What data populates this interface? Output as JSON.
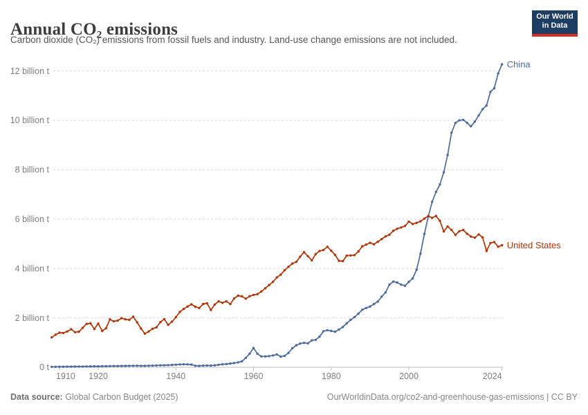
{
  "header": {
    "title": "Annual CO₂ emissions",
    "subtitle": "Carbon dioxide (CO₂) emissions from fossil fuels and industry. Land-use change emissions are not included."
  },
  "logo": {
    "line1": "Our World",
    "line2": "in Data"
  },
  "footer": {
    "source_label": "Data source:",
    "source_value": " Global Carbon Budget (2025)",
    "attribution": "OurWorldinData.org/co2-and-greenhouse-gas-emissions | CC BY"
  },
  "chart_data": {
    "type": "line",
    "title": "Annual CO₂ emissions",
    "xlabel": "",
    "ylabel": "",
    "unit": "billion tonnes of CO₂",
    "grid": "horizontal-dashed",
    "legend_position": "line-end-labels",
    "x_range": [
      1908,
      2024
    ],
    "y_range": [
      0,
      12.4
    ],
    "x_ticks": [
      {
        "year": 1910,
        "label": "1910"
      },
      {
        "year": 1920,
        "label": "1920"
      },
      {
        "year": 1940,
        "label": "1940"
      },
      {
        "year": 1960,
        "label": "1960"
      },
      {
        "year": 1980,
        "label": "1980"
      },
      {
        "year": 2000,
        "label": "2000"
      },
      {
        "year": 2024,
        "label": "2024"
      }
    ],
    "y_ticks": [
      {
        "value": 0,
        "label": "0 t"
      },
      {
        "value": 2,
        "label": "2 billion t"
      },
      {
        "value": 4,
        "label": "4 billion t"
      },
      {
        "value": 6,
        "label": "6 billion t"
      },
      {
        "value": 8,
        "label": "8 billion t"
      },
      {
        "value": 10,
        "label": "10 billion t"
      },
      {
        "value": 12,
        "label": "12 billion t"
      }
    ],
    "series": [
      {
        "name": "China",
        "color": "#4C6A9C",
        "start_year": 1908,
        "end_year": 2024,
        "values": [
          0.02,
          0.021,
          0.022,
          0.022,
          0.024,
          0.026,
          0.028,
          0.03,
          0.032,
          0.034,
          0.036,
          0.038,
          0.04,
          0.042,
          0.044,
          0.047,
          0.05,
          0.05,
          0.052,
          0.056,
          0.058,
          0.062,
          0.064,
          0.06,
          0.06,
          0.064,
          0.068,
          0.073,
          0.078,
          0.08,
          0.088,
          0.096,
          0.105,
          0.115,
          0.12,
          0.118,
          0.108,
          0.062,
          0.06,
          0.068,
          0.072,
          0.068,
          0.079,
          0.1,
          0.12,
          0.13,
          0.15,
          0.17,
          0.2,
          0.24,
          0.38,
          0.55,
          0.78,
          0.55,
          0.44,
          0.44,
          0.45,
          0.48,
          0.52,
          0.43,
          0.46,
          0.58,
          0.77,
          0.89,
          0.96,
          0.99,
          0.97,
          1.09,
          1.11,
          1.24,
          1.46,
          1.5,
          1.47,
          1.44,
          1.53,
          1.63,
          1.78,
          1.92,
          2.03,
          2.17,
          2.33,
          2.4,
          2.46,
          2.56,
          2.66,
          2.86,
          3.03,
          3.35,
          3.47,
          3.43,
          3.35,
          3.3,
          3.46,
          3.6,
          3.95,
          4.6,
          5.4,
          6.1,
          6.7,
          7.1,
          7.4,
          7.9,
          8.6,
          9.5,
          9.9,
          10.0,
          10.02,
          9.9,
          9.76,
          9.95,
          10.2,
          10.45,
          10.6,
          11.15,
          11.3,
          11.9,
          12.27
        ]
      },
      {
        "name": "United States",
        "color": "#B13507",
        "start_year": 1908,
        "end_year": 2024,
        "values": [
          1.21,
          1.32,
          1.4,
          1.39,
          1.45,
          1.54,
          1.42,
          1.44,
          1.6,
          1.76,
          1.78,
          1.55,
          1.77,
          1.47,
          1.58,
          1.94,
          1.86,
          1.89,
          1.99,
          1.94,
          1.92,
          2.05,
          1.82,
          1.57,
          1.36,
          1.45,
          1.56,
          1.62,
          1.83,
          1.95,
          1.72,
          1.85,
          2.03,
          2.24,
          2.36,
          2.46,
          2.55,
          2.45,
          2.4,
          2.56,
          2.59,
          2.32,
          2.54,
          2.67,
          2.61,
          2.67,
          2.56,
          2.79,
          2.9,
          2.87,
          2.78,
          2.88,
          2.93,
          2.96,
          3.07,
          3.2,
          3.33,
          3.46,
          3.64,
          3.75,
          3.93,
          4.07,
          4.2,
          4.27,
          4.48,
          4.66,
          4.5,
          4.33,
          4.58,
          4.71,
          4.75,
          4.88,
          4.72,
          4.55,
          4.31,
          4.3,
          4.52,
          4.53,
          4.54,
          4.69,
          4.9,
          4.97,
          5.04,
          4.98,
          5.08,
          5.19,
          5.3,
          5.37,
          5.53,
          5.61,
          5.66,
          5.72,
          5.9,
          5.8,
          5.85,
          5.91,
          6.02,
          6.13,
          6.05,
          6.13,
          5.93,
          5.5,
          5.7,
          5.56,
          5.36,
          5.51,
          5.56,
          5.41,
          5.29,
          5.25,
          5.38,
          5.26,
          4.71,
          5.03,
          5.07,
          4.88,
          4.94
        ]
      }
    ]
  }
}
